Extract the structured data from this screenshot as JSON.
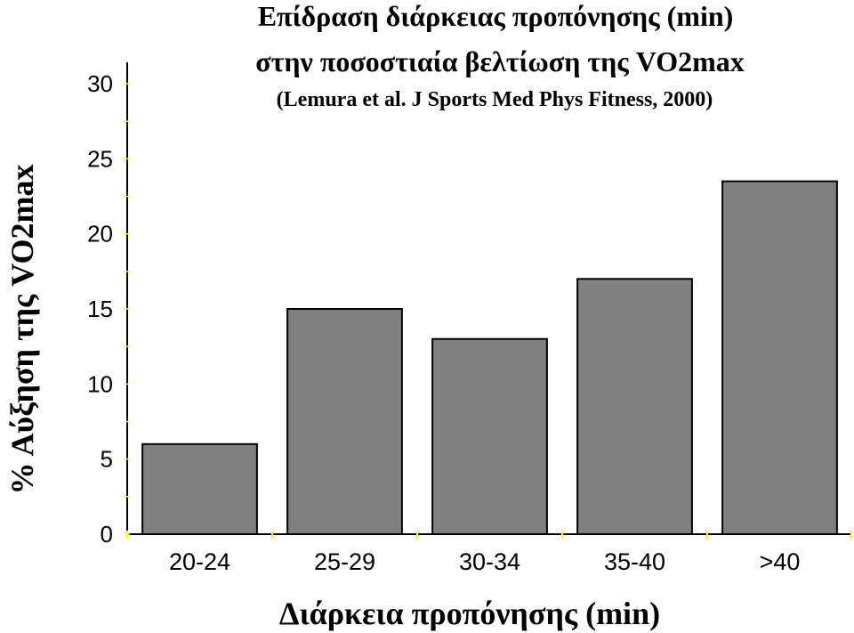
{
  "chart_data": {
    "type": "bar",
    "title": "Επίδραση διάρκειας προπόνησης (min)",
    "title_line2": "στην ποσοστιαία βελτίωση της VO2max",
    "subtitle": "(Lemura et al. J Sports Med Phys Fitness, 2000)",
    "xlabel": "Διάρκεια προπόνησης (min)",
    "ylabel": "% Αύξηση της VO2max",
    "categories": [
      "20-24",
      "25-29",
      "30-34",
      "35-40",
      ">40"
    ],
    "values": [
      6,
      15,
      13,
      17,
      23.5
    ],
    "ylim": [
      0,
      30
    ],
    "yticks": [
      0,
      5,
      10,
      15,
      20,
      25,
      30
    ],
    "bar_color": "#808080",
    "axis_tick_color": "#ffff00",
    "grid": false,
    "legend": "none"
  }
}
